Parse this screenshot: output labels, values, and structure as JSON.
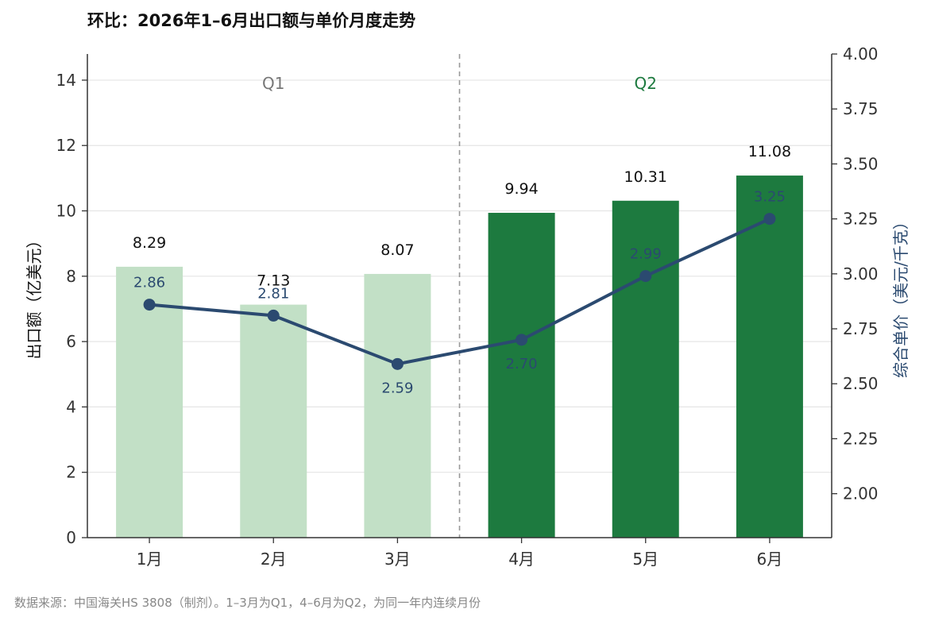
{
  "title": "环比：2026年1–6月出口额与单价月度走势",
  "source": "数据来源：中国海关HS 3808（制剂）。1–3月为Q1，4–6月为Q2，为同一年内连续月份",
  "chart_data": {
    "type": "bar",
    "categories": [
      "1月",
      "2月",
      "3月",
      "4月",
      "5月",
      "6月"
    ],
    "series": [
      {
        "values": [
          8.29,
          7.13,
          8.07,
          9.94,
          10.31,
          11.08
        ],
        "labels": [
          "8.29",
          "7.13",
          "8.07",
          "9.94",
          "10.31",
          "11.08"
        ],
        "axis": "left",
        "type": "bar"
      },
      {
        "values": [
          2.86,
          2.81,
          2.59,
          2.7,
          2.99,
          3.25
        ],
        "labels": [
          "2.86",
          "2.81",
          "2.59",
          "2.70",
          "2.99",
          "3.25"
        ],
        "axis": "right",
        "type": "line"
      }
    ],
    "ylabel": "出口额（亿美元）",
    "y2label": "综合单价（美元/千克）",
    "ylim": [
      0,
      14.8
    ],
    "y2lim": [
      1.8,
      4.0
    ],
    "yticks": [
      "0",
      "2",
      "4",
      "6",
      "8",
      "10",
      "12",
      "14"
    ],
    "y2ticks": [
      "2.00",
      "2.25",
      "2.50",
      "2.75",
      "3.00",
      "3.25",
      "3.50",
      "3.75",
      "4.00"
    ],
    "groups": [
      {
        "label": "Q1",
        "months": [
          0,
          1,
          2
        ]
      },
      {
        "label": "Q2",
        "months": [
          3,
          4,
          5
        ]
      }
    ],
    "grid": true,
    "colors": {
      "q1_bar": "#c2e0c6",
      "q2_bar": "#1d7a3f",
      "line": "#2b4a70",
      "q1_text": "#777777",
      "q2_text": "#1d7a3f",
      "grid": "#e5e5e5",
      "divider": "#999999"
    }
  }
}
